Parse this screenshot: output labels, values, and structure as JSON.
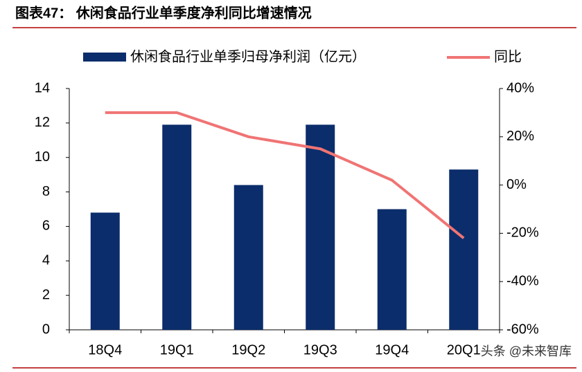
{
  "chart_data": {
    "type": "bar_line",
    "title": "图表47：  休闲食品行业单季度净利同比增速情况",
    "categories": [
      "18Q4",
      "19Q1",
      "19Q2",
      "19Q3",
      "19Q4",
      "20Q1"
    ],
    "series": [
      {
        "name": "休闲食品行业单季归母净利润（亿元）",
        "type": "bar",
        "color": "#0b2d6b",
        "values": [
          6.8,
          11.9,
          8.4,
          11.9,
          7.0,
          9.3
        ]
      },
      {
        "name": "同比",
        "type": "line",
        "axis": "y2",
        "color": "#f07474",
        "values": [
          30,
          30,
          20,
          15,
          2,
          -22
        ]
      }
    ],
    "ylim": [
      0,
      14
    ],
    "yticks": [
      0,
      2,
      4,
      6,
      8,
      10,
      12,
      14
    ],
    "y2lim": [
      -60,
      40
    ],
    "y2ticks": [
      {
        "value": -60,
        "label": "-60%"
      },
      {
        "value": -40,
        "label": "-40%"
      },
      {
        "value": -20,
        "label": "-20%"
      },
      {
        "value": 0,
        "label": "0%"
      },
      {
        "value": 20,
        "label": "20%"
      },
      {
        "value": 40,
        "label": "40%"
      }
    ],
    "watermark": "头条 @未来智库"
  }
}
